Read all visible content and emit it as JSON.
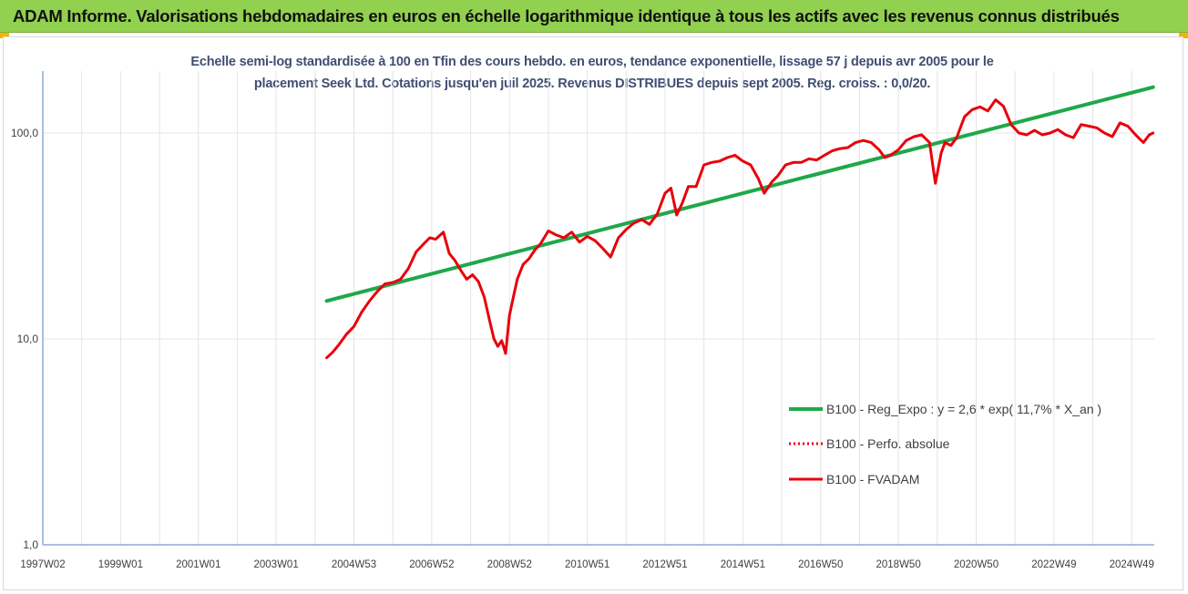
{
  "banner": {
    "title": "ADAM Informe. Valorisations hebdomadaires en euros en échelle logarithmique identique à tous les actifs avec les revenus connus distribués"
  },
  "colors": {
    "banner_bg": "#92d050",
    "regression": "#1fa84a",
    "fvadam": "#e8000b",
    "perfo": "#e8000b",
    "grid": "#e4e4e4",
    "axis": "#8eaad6"
  },
  "chart_data": {
    "type": "line",
    "title": "Echelle semi-log standardisée à 100 en Tfin des cours hebdo. en euros, tendance exponentielle, lissage 57 j depuis avr 2005 pour le placement Seek Ltd. Cotations jusqu'en juil 2025. Revenus DISTRIBUES depuis sept 2005. Reg. croiss. : 0,0/20.",
    "title_lines": [
      "Echelle semi-log standardisée à 100 en Tfin des cours hebdo. en euros, tendance exponentielle, lissage 57 j depuis avr 2005 pour le",
      "placement Seek Ltd. Cotations jusqu'en juil 2025. Revenus DISTRIBUES depuis sept 2005. Reg. croiss. : 0,0/20."
    ],
    "y_scale": "log",
    "ylim": [
      1,
      200
    ],
    "y_ticks": [
      1,
      10,
      100
    ],
    "y_tick_labels": [
      "1,0",
      "10,0",
      "100,0"
    ],
    "xlim": [
      1997.0,
      2025.58
    ],
    "x_tick_labels": [
      "1997W02",
      "1999W01",
      "2001W01",
      "2003W01",
      "2004W53",
      "2006W52",
      "2008W52",
      "2010W51",
      "2012W51",
      "2014W51",
      "2016W50",
      "2018W50",
      "2020W50",
      "2022W49",
      "2024W49"
    ],
    "x_tick_positions": [
      1997.0,
      1999.0,
      2001.0,
      2003.0,
      2005.0,
      2007.0,
      2009.0,
      2011.0,
      2013.0,
      2015.0,
      2017.0,
      2019.0,
      2021.0,
      2023.0,
      2025.0
    ],
    "grid": true,
    "legend_position": "bottom-right",
    "series": [
      {
        "name": "B100 - Reg_Expo : y = 2,6 * exp( 11,7% *  X_an )",
        "style": "solid-green",
        "x": [
          2004.3,
          2025.55
        ],
        "values": [
          15.3,
          167
        ]
      },
      {
        "name": "B100 - Perfo. absolue",
        "style": "dotted-red",
        "x": [],
        "values": []
      },
      {
        "name": "B100 - FVADAM",
        "style": "solid-red",
        "x": [
          2004.3,
          2004.45,
          2004.6,
          2004.8,
          2005.0,
          2005.2,
          2005.4,
          2005.6,
          2005.8,
          2006.0,
          2006.2,
          2006.4,
          2006.6,
          2006.8,
          2006.95,
          2007.1,
          2007.3,
          2007.45,
          2007.6,
          2007.75,
          2007.9,
          2008.05,
          2008.2,
          2008.35,
          2008.5,
          2008.6,
          2008.7,
          2008.8,
          2008.9,
          2009.0,
          2009.1,
          2009.2,
          2009.35,
          2009.5,
          2009.65,
          2009.8,
          2010.0,
          2010.2,
          2010.4,
          2010.6,
          2010.8,
          2011.0,
          2011.2,
          2011.4,
          2011.6,
          2011.8,
          2012.0,
          2012.2,
          2012.4,
          2012.6,
          2012.8,
          2013.0,
          2013.15,
          2013.3,
          2013.45,
          2013.6,
          2013.8,
          2014.0,
          2014.2,
          2014.4,
          2014.6,
          2014.8,
          2015.0,
          2015.2,
          2015.4,
          2015.55,
          2015.75,
          2015.9,
          2016.1,
          2016.3,
          2016.5,
          2016.7,
          2016.9,
          2017.1,
          2017.3,
          2017.5,
          2017.7,
          2017.9,
          2018.1,
          2018.3,
          2018.5,
          2018.65,
          2018.8,
          2019.0,
          2019.2,
          2019.4,
          2019.6,
          2019.8,
          2019.95,
          2020.1,
          2020.2,
          2020.35,
          2020.5,
          2020.7,
          2020.9,
          2021.1,
          2021.3,
          2021.5,
          2021.7,
          2021.9,
          2022.1,
          2022.3,
          2022.5,
          2022.7,
          2022.9,
          2023.1,
          2023.3,
          2023.5,
          2023.7,
          2023.9,
          2024.1,
          2024.3,
          2024.5,
          2024.7,
          2024.9,
          2025.1,
          2025.3,
          2025.45,
          2025.55
        ],
        "values": [
          8.1,
          8.6,
          9.3,
          10.5,
          11.5,
          13.5,
          15.3,
          17.0,
          18.5,
          18.8,
          19.5,
          22.0,
          26.5,
          29.0,
          31.0,
          30.5,
          33.0,
          26.0,
          24.0,
          21.5,
          19.5,
          20.5,
          19.0,
          16.0,
          12.0,
          10.0,
          9.2,
          9.8,
          8.5,
          13.0,
          16.0,
          19.5,
          23.0,
          24.5,
          27.0,
          29.0,
          33.5,
          32.0,
          31.0,
          33.0,
          29.5,
          31.5,
          30.0,
          27.5,
          25.0,
          31.0,
          34.0,
          36.5,
          38.0,
          36.0,
          40.5,
          51.0,
          54.0,
          40.0,
          46.0,
          55.0,
          55.0,
          70.0,
          72.0,
          73.0,
          76.0,
          78.0,
          73.0,
          70.0,
          60.0,
          51.0,
          58.0,
          62.0,
          70.0,
          72.0,
          72.0,
          75.0,
          74.0,
          78.0,
          82.0,
          84.0,
          85.0,
          90.0,
          92.0,
          90.0,
          83.0,
          76.0,
          78.0,
          83.0,
          92.0,
          96.0,
          98.0,
          90.0,
          57.0,
          80.0,
          90.0,
          87.0,
          95.0,
          120.0,
          130.0,
          134.0,
          128.0,
          145.0,
          135.0,
          110.0,
          100.0,
          98.0,
          103.0,
          98.0,
          100.0,
          104.0,
          98.0,
          95.0,
          110.0,
          108.0,
          106.0,
          100.0,
          96.0,
          112.0,
          108.0,
          98.0,
          90.0,
          98.0,
          100.0
        ]
      }
    ]
  }
}
